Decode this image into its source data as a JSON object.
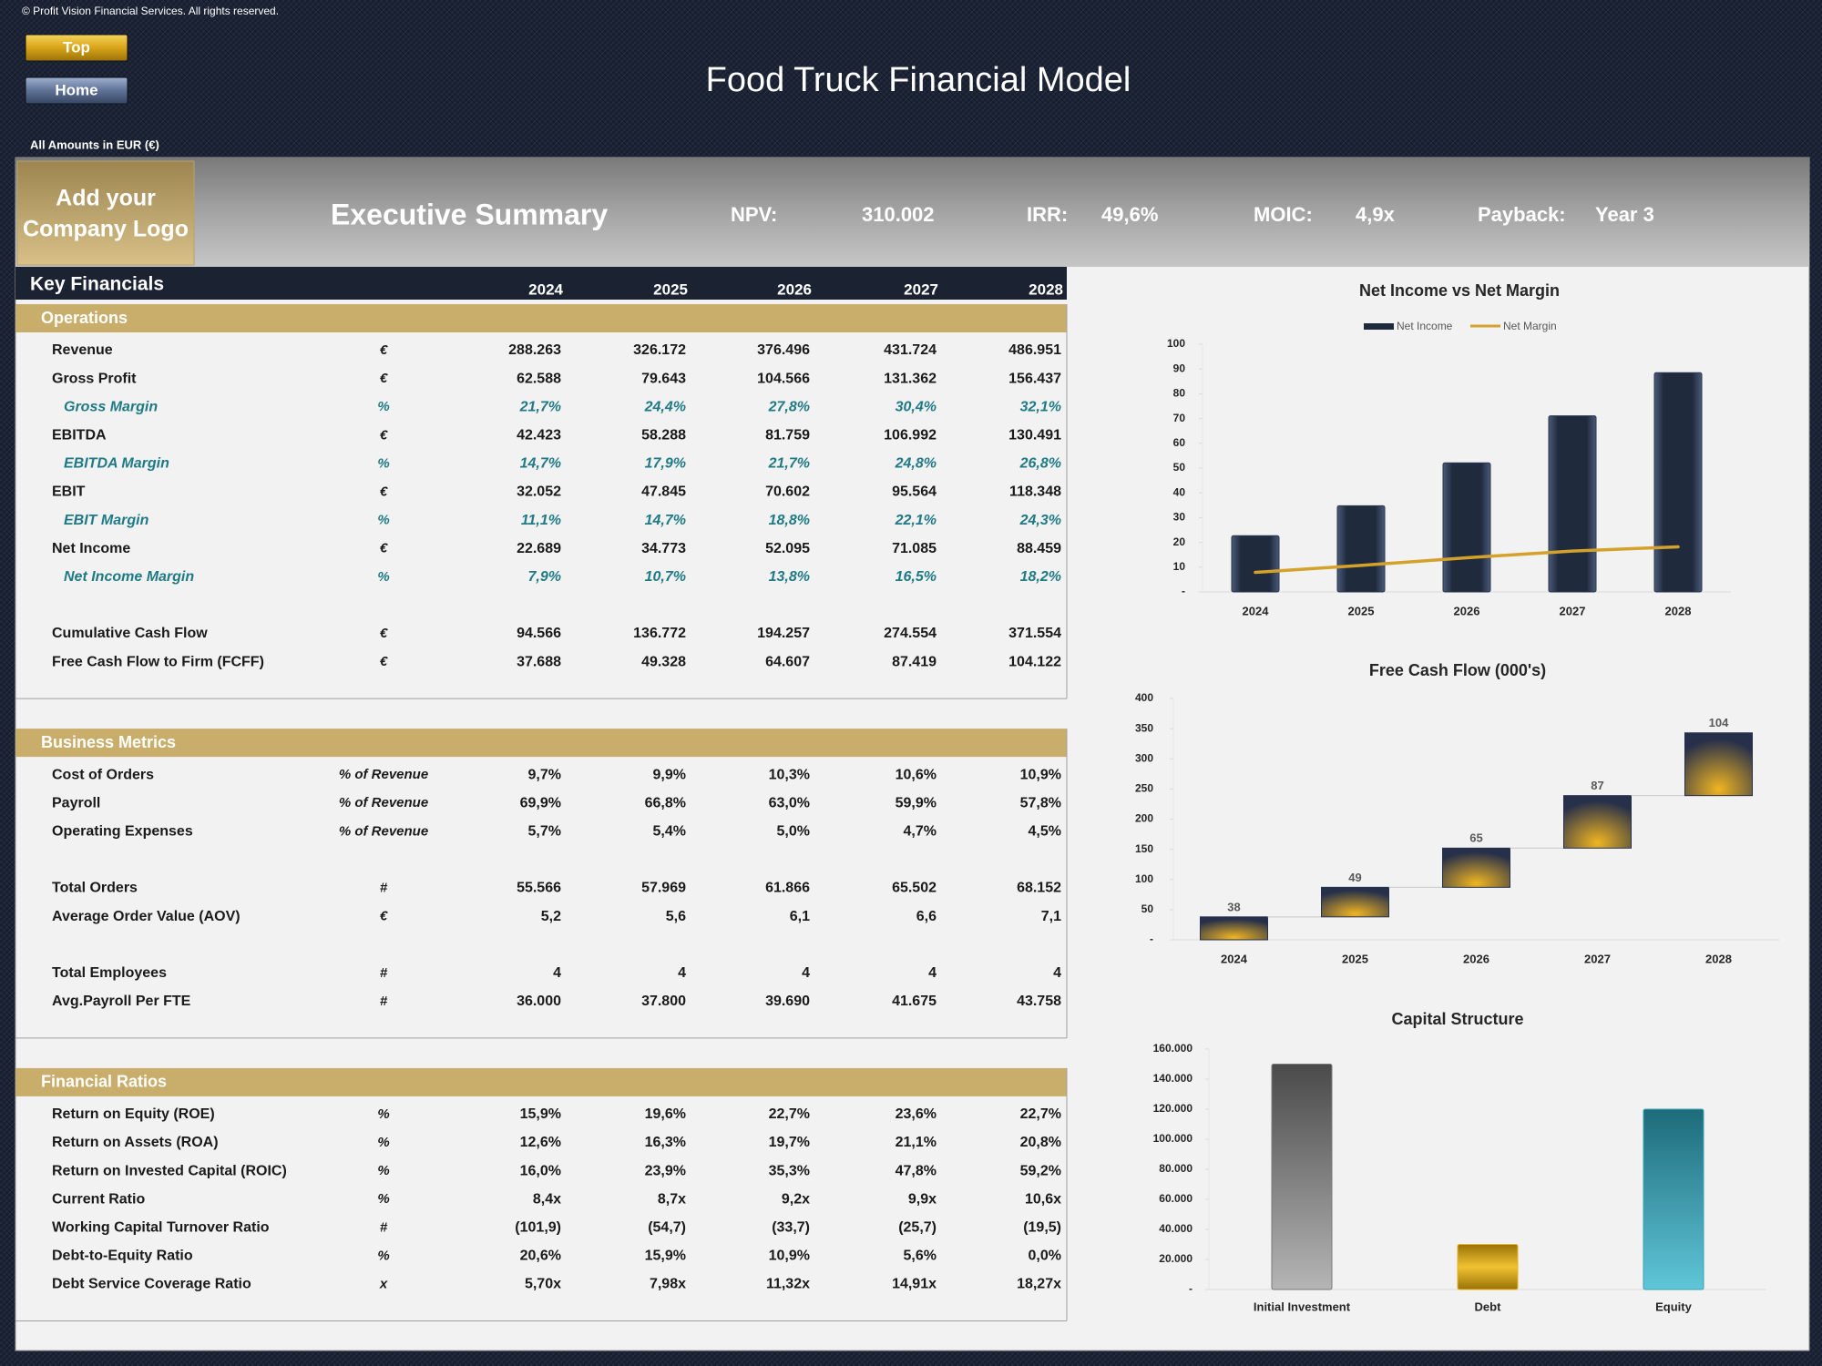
{
  "header": {
    "copyright": "© Profit Vision Financial Services. All rights reserved.",
    "buttons": [
      "Top",
      "Home"
    ],
    "title": "Food Truck Financial Model",
    "currency_note": "All Amounts in  EUR (€)",
    "logo": [
      "Add your",
      "Company Logo"
    ],
    "summary_title": "Executive Summary",
    "kpis": [
      {
        "label": "NPV:",
        "value": "310.002"
      },
      {
        "label": "IRR:",
        "value": "49,6%"
      },
      {
        "label": "MOIC:",
        "value": "4,9x"
      },
      {
        "label": "Payback:",
        "value": "Year 3"
      }
    ]
  },
  "key_financials": {
    "title": "Key Financials",
    "years": [
      "2024",
      "2025",
      "2026",
      "2027",
      "2028"
    ],
    "sections": [
      {
        "title": "Operations",
        "groups": [
          [
            {
              "label": "Revenue",
              "unit": "€",
              "values": [
                "288.263",
                "326.172",
                "376.496",
                "431.724",
                "486.951"
              ]
            },
            {
              "label": "Gross Profit",
              "unit": "€",
              "values": [
                "62.588",
                "79.643",
                "104.566",
                "131.362",
                "156.437"
              ]
            },
            {
              "label": "Gross Margin",
              "unit": "%",
              "values": [
                "21,7%",
                "24,4%",
                "27,8%",
                "30,4%",
                "32,1%"
              ]
            },
            {
              "label": "EBITDA",
              "unit": "€",
              "values": [
                "42.423",
                "58.288",
                "81.759",
                "106.992",
                "130.491"
              ]
            },
            {
              "label": "EBITDA Margin",
              "unit": "%",
              "values": [
                "14,7%",
                "17,9%",
                "21,7%",
                "24,8%",
                "26,8%"
              ]
            },
            {
              "label": "EBIT",
              "unit": "€",
              "values": [
                "32.052",
                "47.845",
                "70.602",
                "95.564",
                "118.348"
              ]
            },
            {
              "label": "EBIT Margin",
              "unit": "%",
              "values": [
                "11,1%",
                "14,7%",
                "18,8%",
                "22,1%",
                "24,3%"
              ]
            },
            {
              "label": "Net Income",
              "unit": "€",
              "values": [
                "22.689",
                "34.773",
                "52.095",
                "71.085",
                "88.459"
              ]
            },
            {
              "label": "Net Income Margin",
              "unit": "%",
              "values": [
                "7,9%",
                "10,7%",
                "13,8%",
                "16,5%",
                "18,2%"
              ]
            }
          ],
          [
            {
              "label": "Cumulative Cash Flow",
              "unit": "€",
              "values": [
                "94.566",
                "136.772",
                "194.257",
                "274.554",
                "371.554"
              ]
            },
            {
              "label": "Free Cash Flow to Firm (FCFF)",
              "unit": "€",
              "values": [
                "37.688",
                "49.328",
                "64.607",
                "87.419",
                "104.122"
              ]
            }
          ]
        ]
      },
      {
        "title": "Business Metrics",
        "groups": [
          [
            {
              "label": "Cost of Orders",
              "unit": "% of Revenue",
              "values": [
                "9,7%",
                "9,9%",
                "10,3%",
                "10,6%",
                "10,9%"
              ]
            },
            {
              "label": "Payroll",
              "unit": "% of Revenue",
              "values": [
                "69,9%",
                "66,8%",
                "63,0%",
                "59,9%",
                "57,8%"
              ]
            },
            {
              "label": "Operating Expenses",
              "unit": "% of Revenue",
              "values": [
                "5,7%",
                "5,4%",
                "5,0%",
                "4,7%",
                "4,5%"
              ]
            }
          ],
          [
            {
              "label": "Total Orders",
              "unit": "#",
              "values": [
                "55.566",
                "57.969",
                "61.866",
                "65.502",
                "68.152"
              ]
            },
            {
              "label": "Average Order Value (AOV)",
              "unit": "€",
              "values": [
                "5,2",
                "5,6",
                "6,1",
                "6,6",
                "7,1"
              ]
            }
          ],
          [
            {
              "label": "Total Employees",
              "unit": "#",
              "values": [
                "4",
                "4",
                "4",
                "4",
                "4"
              ]
            },
            {
              "label": "Avg.Payroll Per FTE",
              "unit": "#",
              "values": [
                "36.000",
                "37.800",
                "39.690",
                "41.675",
                "43.758"
              ]
            }
          ]
        ]
      },
      {
        "title": "Financial Ratios",
        "groups": [
          [
            {
              "label": "Return on Equity (ROE)",
              "unit": "%",
              "values": [
                "15,9%",
                "19,6%",
                "22,7%",
                "23,6%",
                "22,7%"
              ]
            },
            {
              "label": "Return on Assets (ROA)",
              "unit": "%",
              "values": [
                "12,6%",
                "16,3%",
                "19,7%",
                "21,1%",
                "20,8%"
              ]
            },
            {
              "label": "Return on Invested Capital (ROIC)",
              "unit": "%",
              "values": [
                "16,0%",
                "23,9%",
                "35,3%",
                "47,8%",
                "59,2%"
              ]
            },
            {
              "label": "Current Ratio",
              "unit": "%",
              "values": [
                "8,4x",
                "8,7x",
                "9,2x",
                "9,9x",
                "10,6x"
              ]
            },
            {
              "label": "Working Capital Turnover Ratio",
              "unit": "#",
              "values": [
                "(101,9)",
                "(54,7)",
                "(33,7)",
                "(25,7)",
                "(19,5)"
              ]
            },
            {
              "label": "Debt-to-Equity Ratio",
              "unit": "%",
              "values": [
                "20,6%",
                "15,9%",
                "10,9%",
                "5,6%",
                "0,0%"
              ]
            },
            {
              "label": "Debt Service Coverage Ratio",
              "unit": "x",
              "values": [
                "5,70x",
                "7,98x",
                "11,32x",
                "14,91x",
                "18,27x"
              ]
            }
          ]
        ]
      }
    ]
  },
  "chart_data": [
    {
      "type": "combo",
      "title": "Net Income vs Net Margin",
      "categories": [
        "2024",
        "2025",
        "2026",
        "2027",
        "2028"
      ],
      "series": [
        {
          "name": "Net Income",
          "kind": "bar",
          "color": "#1f2a3d",
          "values": [
            22.7,
            34.8,
            52.1,
            71.1,
            88.5
          ]
        },
        {
          "name": "Net Margin",
          "kind": "line",
          "color": "#d4a22a",
          "values": [
            7.9,
            10.7,
            13.8,
            16.5,
            18.2
          ]
        }
      ],
      "ylim": [
        0,
        100
      ],
      "yticks": [
        {
          "value": 0,
          "label": "-"
        },
        10,
        20,
        30,
        40,
        50,
        60,
        70,
        80,
        90,
        100
      ],
      "legend": "top"
    },
    {
      "type": "waterfall",
      "title": "Free Cash Flow (000's)",
      "categories": [
        "2024",
        "2025",
        "2026",
        "2027",
        "2028"
      ],
      "values": [
        38,
        49,
        65,
        87,
        104
      ],
      "color": "#e6ac1e",
      "ylim": [
        0,
        400
      ],
      "yticks": [
        {
          "value": 0,
          "label": "-"
        },
        50,
        100,
        150,
        200,
        250,
        300,
        350,
        400
      ]
    },
    {
      "type": "bar",
      "title": "Capital Structure",
      "categories": [
        "Initial Investment",
        "Debt",
        "Equity"
      ],
      "values": [
        150000,
        30000,
        120000
      ],
      "colors": [
        "#7a7a7a",
        "#e6b422",
        "#3aa3b5"
      ],
      "ylim": [
        0,
        160000
      ],
      "yticks": [
        {
          "value": 0,
          "label": "-"
        },
        {
          "value": 20000,
          "label": "20.000"
        },
        {
          "value": 40000,
          "label": "40.000"
        },
        {
          "value": 60000,
          "label": "60.000"
        },
        {
          "value": 80000,
          "label": "80.000"
        },
        {
          "value": 100000,
          "label": "100.000"
        },
        {
          "value": 120000,
          "label": "120.000"
        },
        {
          "value": 140000,
          "label": "140.000"
        },
        {
          "value": 160000,
          "label": "160.000"
        }
      ]
    }
  ]
}
